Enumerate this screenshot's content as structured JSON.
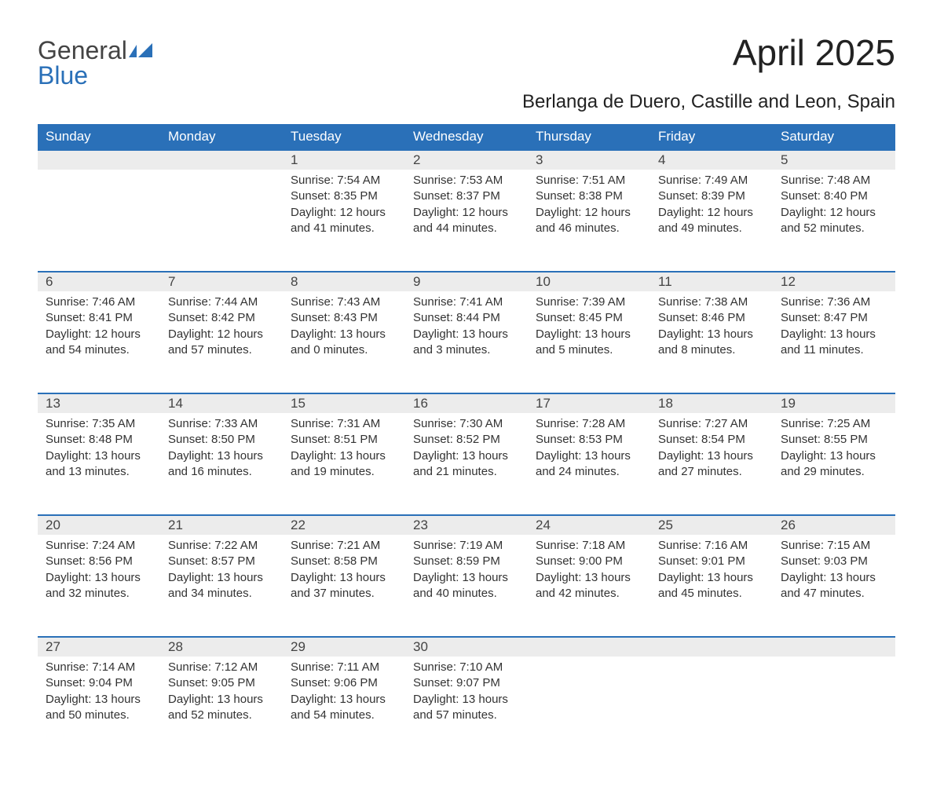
{
  "brand": {
    "word1": "General",
    "word2": "Blue",
    "accent_color": "#2a70b8"
  },
  "title": "April 2025",
  "location": "Berlanga de Duero, Castille and Leon, Spain",
  "colors": {
    "header_bg": "#2a70b8",
    "header_text": "#ffffff",
    "daynum_bg": "#ececec",
    "border_accent": "#2a70b8",
    "body_text": "#333333",
    "page_bg": "#ffffff"
  },
  "layout": {
    "columns": 7,
    "weeks": 5,
    "first_day_column_index": 2
  },
  "day_headers": [
    "Sunday",
    "Monday",
    "Tuesday",
    "Wednesday",
    "Thursday",
    "Friday",
    "Saturday"
  ],
  "days": [
    {
      "n": 1,
      "sunrise": "7:54 AM",
      "sunset": "8:35 PM",
      "dl_h": 12,
      "dl_m": 41
    },
    {
      "n": 2,
      "sunrise": "7:53 AM",
      "sunset": "8:37 PM",
      "dl_h": 12,
      "dl_m": 44
    },
    {
      "n": 3,
      "sunrise": "7:51 AM",
      "sunset": "8:38 PM",
      "dl_h": 12,
      "dl_m": 46
    },
    {
      "n": 4,
      "sunrise": "7:49 AM",
      "sunset": "8:39 PM",
      "dl_h": 12,
      "dl_m": 49
    },
    {
      "n": 5,
      "sunrise": "7:48 AM",
      "sunset": "8:40 PM",
      "dl_h": 12,
      "dl_m": 52
    },
    {
      "n": 6,
      "sunrise": "7:46 AM",
      "sunset": "8:41 PM",
      "dl_h": 12,
      "dl_m": 54
    },
    {
      "n": 7,
      "sunrise": "7:44 AM",
      "sunset": "8:42 PM",
      "dl_h": 12,
      "dl_m": 57
    },
    {
      "n": 8,
      "sunrise": "7:43 AM",
      "sunset": "8:43 PM",
      "dl_h": 13,
      "dl_m": 0
    },
    {
      "n": 9,
      "sunrise": "7:41 AM",
      "sunset": "8:44 PM",
      "dl_h": 13,
      "dl_m": 3
    },
    {
      "n": 10,
      "sunrise": "7:39 AM",
      "sunset": "8:45 PM",
      "dl_h": 13,
      "dl_m": 5
    },
    {
      "n": 11,
      "sunrise": "7:38 AM",
      "sunset": "8:46 PM",
      "dl_h": 13,
      "dl_m": 8
    },
    {
      "n": 12,
      "sunrise": "7:36 AM",
      "sunset": "8:47 PM",
      "dl_h": 13,
      "dl_m": 11
    },
    {
      "n": 13,
      "sunrise": "7:35 AM",
      "sunset": "8:48 PM",
      "dl_h": 13,
      "dl_m": 13
    },
    {
      "n": 14,
      "sunrise": "7:33 AM",
      "sunset": "8:50 PM",
      "dl_h": 13,
      "dl_m": 16
    },
    {
      "n": 15,
      "sunrise": "7:31 AM",
      "sunset": "8:51 PM",
      "dl_h": 13,
      "dl_m": 19
    },
    {
      "n": 16,
      "sunrise": "7:30 AM",
      "sunset": "8:52 PM",
      "dl_h": 13,
      "dl_m": 21
    },
    {
      "n": 17,
      "sunrise": "7:28 AM",
      "sunset": "8:53 PM",
      "dl_h": 13,
      "dl_m": 24
    },
    {
      "n": 18,
      "sunrise": "7:27 AM",
      "sunset": "8:54 PM",
      "dl_h": 13,
      "dl_m": 27
    },
    {
      "n": 19,
      "sunrise": "7:25 AM",
      "sunset": "8:55 PM",
      "dl_h": 13,
      "dl_m": 29
    },
    {
      "n": 20,
      "sunrise": "7:24 AM",
      "sunset": "8:56 PM",
      "dl_h": 13,
      "dl_m": 32
    },
    {
      "n": 21,
      "sunrise": "7:22 AM",
      "sunset": "8:57 PM",
      "dl_h": 13,
      "dl_m": 34
    },
    {
      "n": 22,
      "sunrise": "7:21 AM",
      "sunset": "8:58 PM",
      "dl_h": 13,
      "dl_m": 37
    },
    {
      "n": 23,
      "sunrise": "7:19 AM",
      "sunset": "8:59 PM",
      "dl_h": 13,
      "dl_m": 40
    },
    {
      "n": 24,
      "sunrise": "7:18 AM",
      "sunset": "9:00 PM",
      "dl_h": 13,
      "dl_m": 42
    },
    {
      "n": 25,
      "sunrise": "7:16 AM",
      "sunset": "9:01 PM",
      "dl_h": 13,
      "dl_m": 45
    },
    {
      "n": 26,
      "sunrise": "7:15 AM",
      "sunset": "9:03 PM",
      "dl_h": 13,
      "dl_m": 47
    },
    {
      "n": 27,
      "sunrise": "7:14 AM",
      "sunset": "9:04 PM",
      "dl_h": 13,
      "dl_m": 50
    },
    {
      "n": 28,
      "sunrise": "7:12 AM",
      "sunset": "9:05 PM",
      "dl_h": 13,
      "dl_m": 52
    },
    {
      "n": 29,
      "sunrise": "7:11 AM",
      "sunset": "9:06 PM",
      "dl_h": 13,
      "dl_m": 54
    },
    {
      "n": 30,
      "sunrise": "7:10 AM",
      "sunset": "9:07 PM",
      "dl_h": 13,
      "dl_m": 57
    }
  ],
  "labels": {
    "sunrise_prefix": "Sunrise: ",
    "sunset_prefix": "Sunset: ",
    "daylight_template": "Daylight: {H} hours and {M} minutes."
  }
}
